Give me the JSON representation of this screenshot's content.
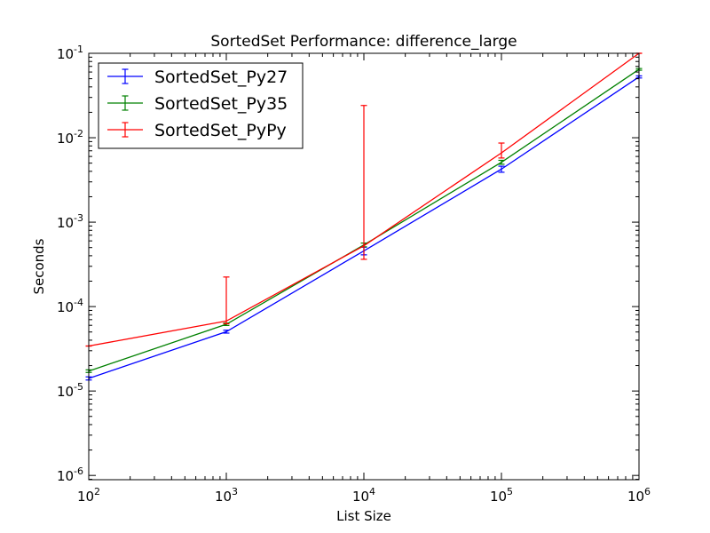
{
  "chart_data": {
    "type": "line",
    "title": "SortedSet Performance: difference_large",
    "xlabel": "List Size",
    "ylabel": "Seconds",
    "xscale": "log",
    "yscale": "log",
    "xlim": [
      100,
      1000000
    ],
    "ylim": [
      8.9e-07,
      0.1
    ],
    "x": [
      100,
      1000,
      10000,
      100000,
      1000000
    ],
    "x_ticks": [
      {
        "value": 100,
        "base": "10",
        "exp": "2"
      },
      {
        "value": 1000,
        "base": "10",
        "exp": "3"
      },
      {
        "value": 10000,
        "base": "10",
        "exp": "4"
      },
      {
        "value": 100000,
        "base": "10",
        "exp": "5"
      },
      {
        "value": 1000000,
        "base": "10",
        "exp": "6"
      }
    ],
    "y_ticks": [
      {
        "value": 1e-06,
        "base": "10",
        "exp": "-6"
      },
      {
        "value": 1e-05,
        "base": "10",
        "exp": "-5"
      },
      {
        "value": 0.0001,
        "base": "10",
        "exp": "-4"
      },
      {
        "value": 0.001,
        "base": "10",
        "exp": "-3"
      },
      {
        "value": 0.01,
        "base": "10",
        "exp": "-2"
      },
      {
        "value": 0.1,
        "base": "10",
        "exp": "-1"
      }
    ],
    "grid": false,
    "legend_position": "top-left",
    "series": [
      {
        "name": "SortedSet_Py27",
        "color": "#0000ff",
        "values": [
          1.41e-05,
          5.04e-05,
          0.000457,
          0.00425,
          0.0525
        ],
        "err_low": [
          1.35e-05,
          4.85e-05,
          0.00041,
          0.0039,
          0.051
        ],
        "err_high": [
          1.47e-05,
          5.25e-05,
          0.000505,
          0.0046,
          0.054
        ]
      },
      {
        "name": "SortedSet_Py35",
        "color": "#008000",
        "values": [
          1.72e-05,
          6.17e-05,
          0.000537,
          0.00512,
          0.0646
        ],
        "err_low": [
          1.66e-05,
          5.97e-05,
          0.00051,
          0.00485,
          0.063
        ],
        "err_high": [
          1.78e-05,
          6.37e-05,
          0.000565,
          0.0054,
          0.066
        ]
      },
      {
        "name": "SortedSet_PyPy",
        "color": "#ff0000",
        "values": [
          3.41e-05,
          6.74e-05,
          0.000525,
          0.00661,
          0.1
        ],
        "err_low": [
          3.41e-05,
          6.25e-05,
          0.000363,
          0.00575,
          0.1
        ],
        "err_high": [
          3.41e-05,
          0.000224,
          0.0241,
          0.00865,
          0.1
        ]
      }
    ]
  }
}
